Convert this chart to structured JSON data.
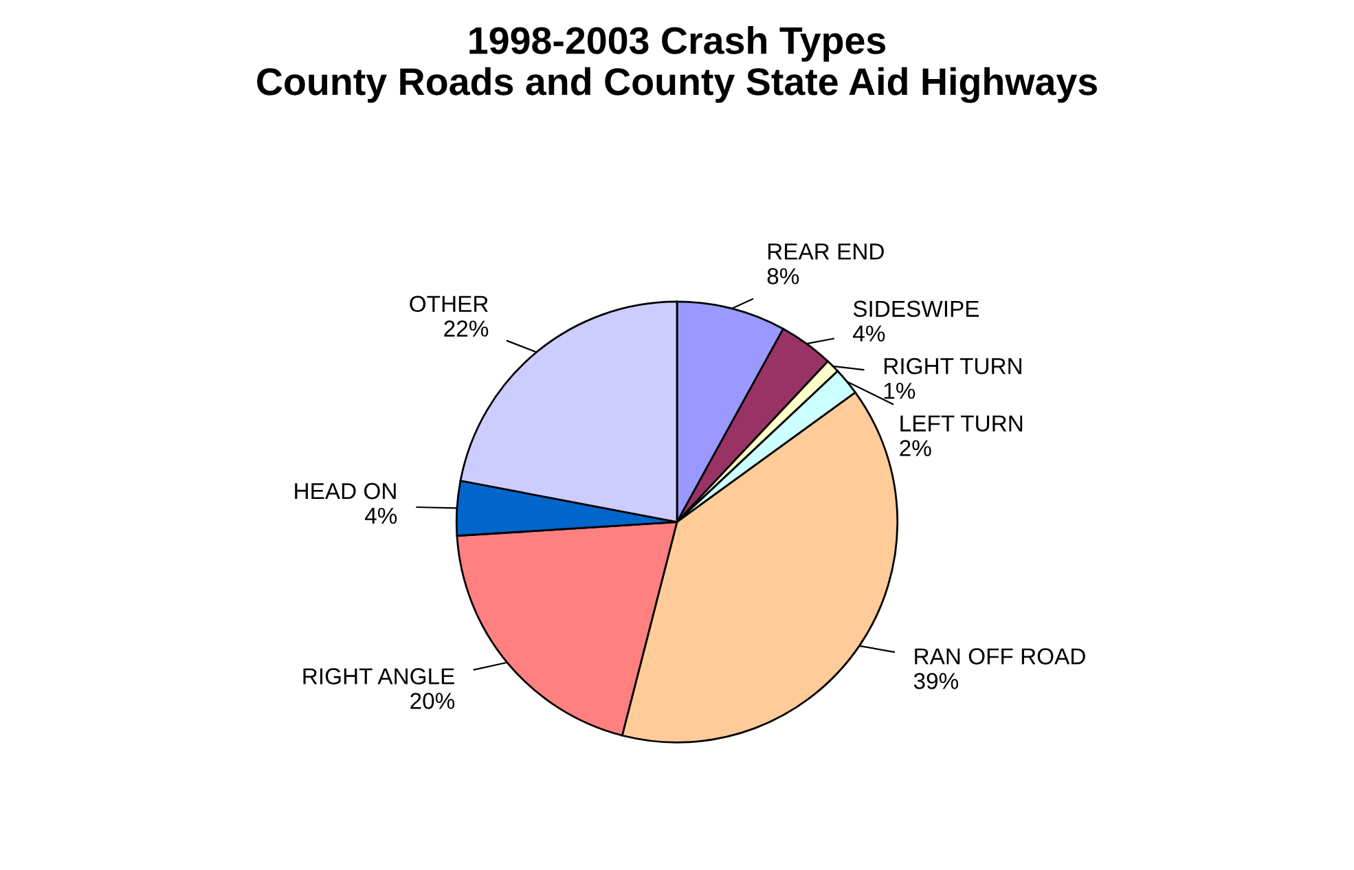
{
  "chart_data": {
    "type": "pie",
    "title": "1998-2003 Crash Types\nCounty Roads and County State Aid Highways",
    "categories": [
      "REAR END",
      "SIDESWIPE",
      "RIGHT TURN",
      "LEFT TURN",
      "RAN OFF ROAD",
      "RIGHT ANGLE",
      "HEAD ON",
      "OTHER"
    ],
    "values": [
      8,
      4,
      1,
      2,
      39,
      20,
      4,
      22
    ],
    "value_labels": [
      "8%",
      "4%",
      "1%",
      "2%",
      "39%",
      "20%",
      "4%",
      "22%"
    ],
    "colors": [
      "#9999ff",
      "#993366",
      "#ffffcc",
      "#ccffff",
      "#ffcc99",
      "#ff8080",
      "#0066cc",
      "#ccccff"
    ],
    "legend": false
  }
}
